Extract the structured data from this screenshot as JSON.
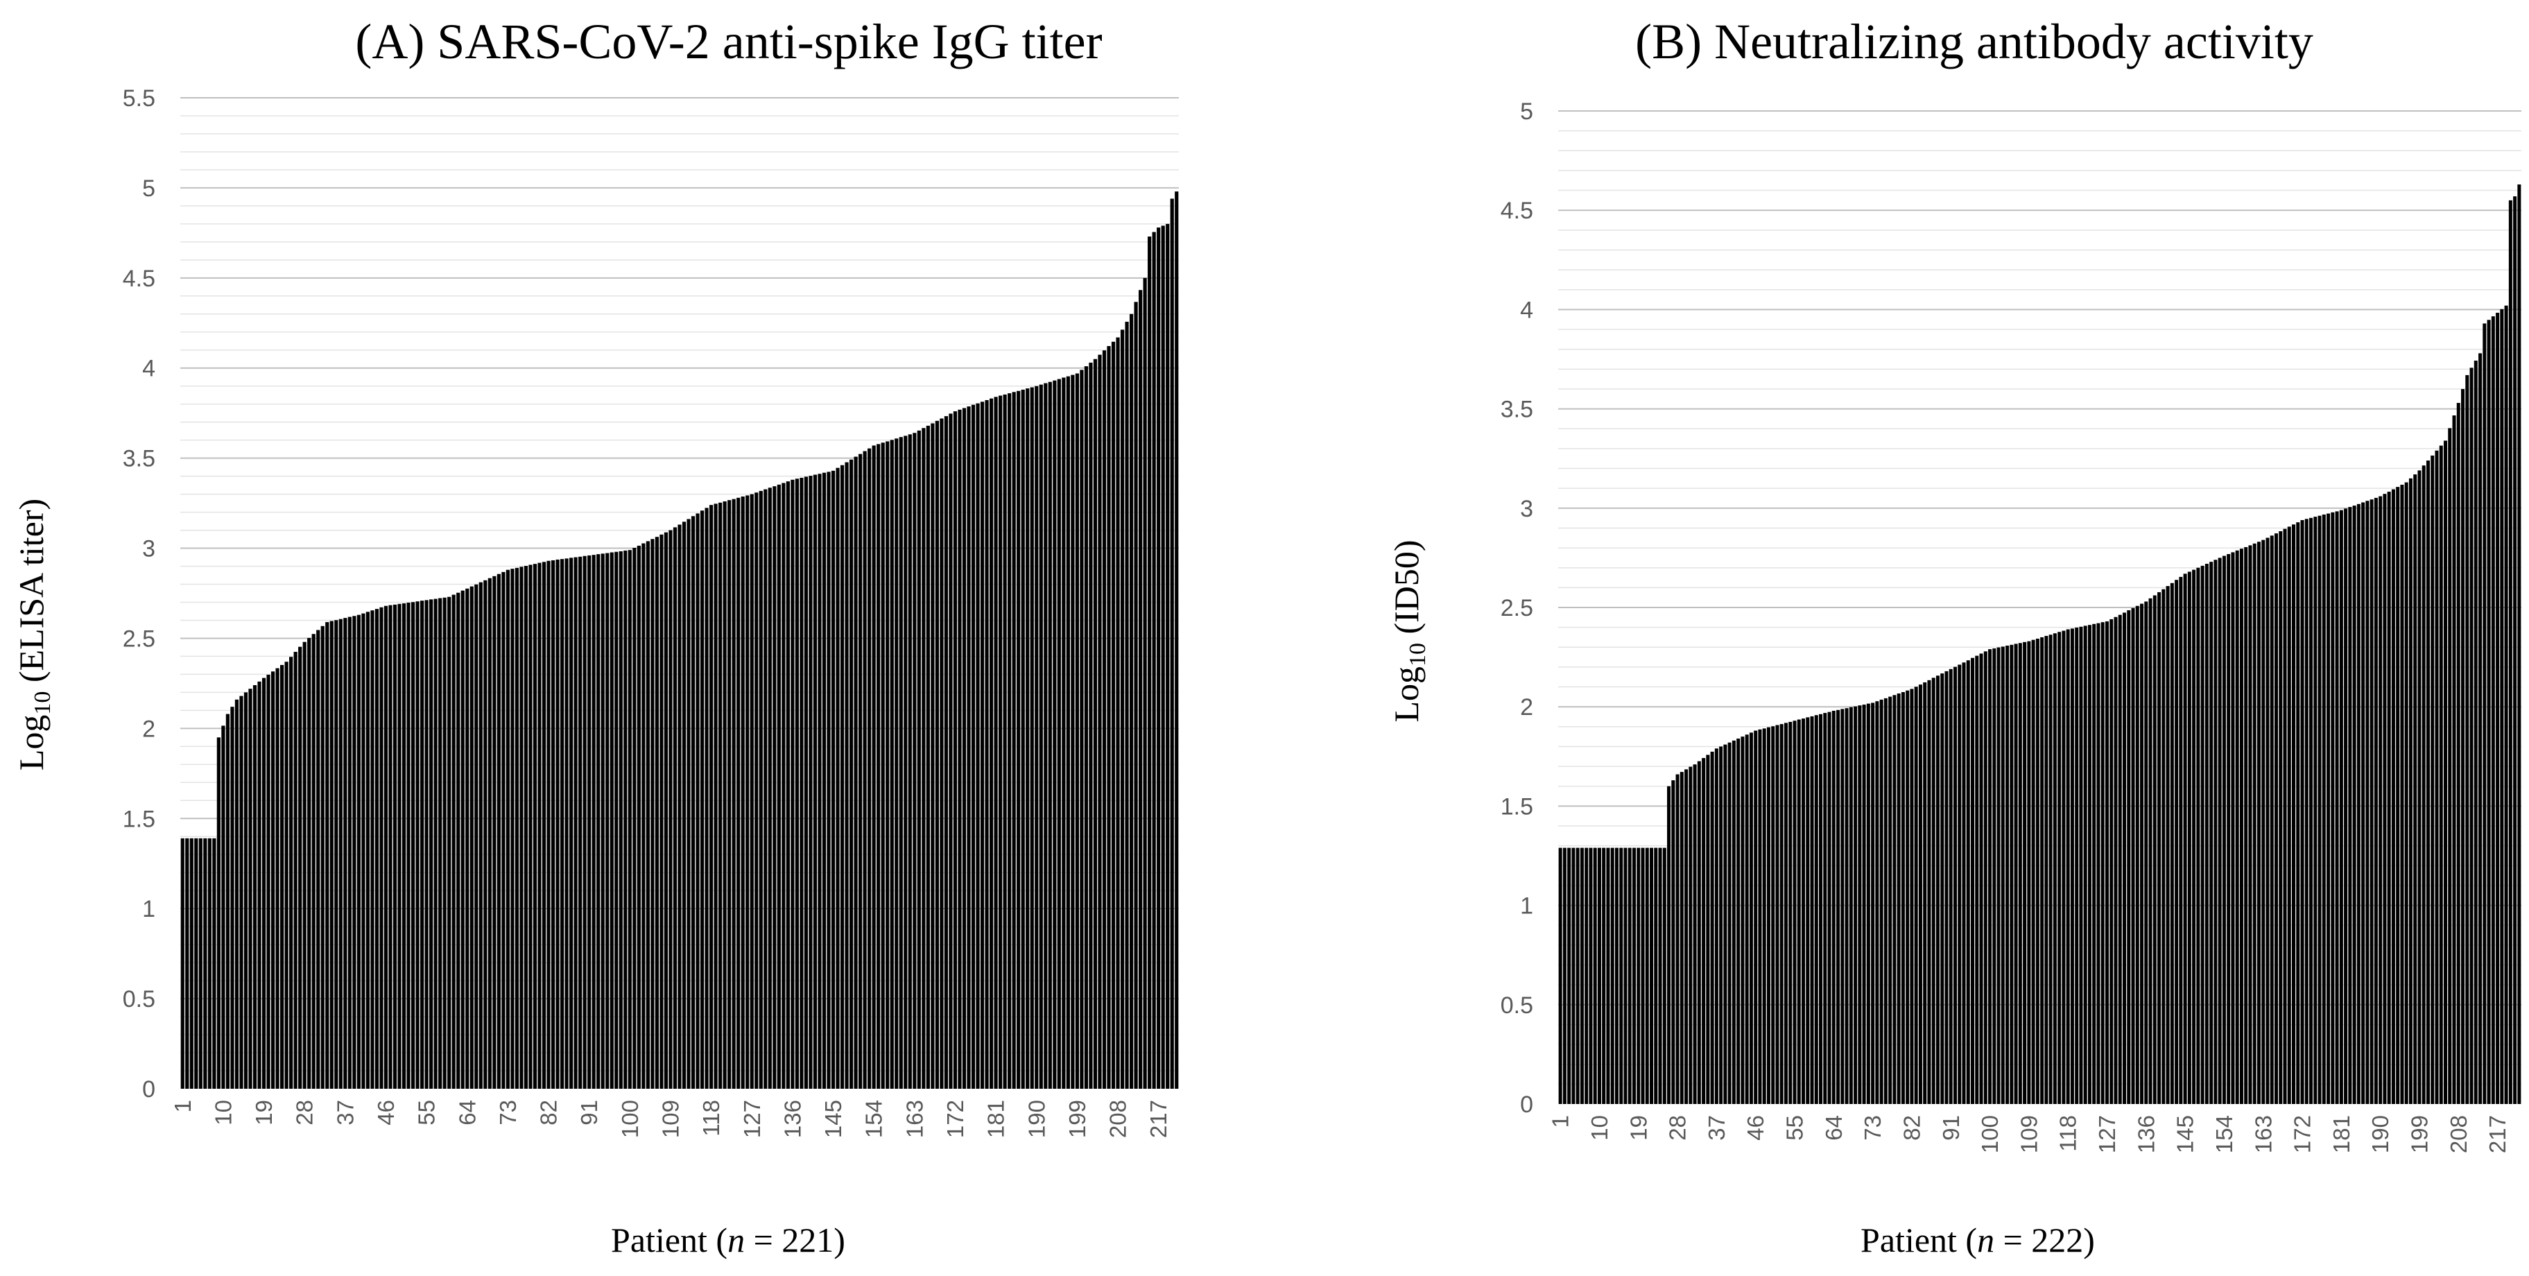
{
  "charts": [
    {
      "id": "A",
      "title": "(A) SARS-CoV-2  anti-spike IgG titer",
      "ylabel_main": "Log",
      "ylabel_sub": "10",
      "ylabel_rest": " (ELISA titer)",
      "xlabel_main": "Patient (",
      "xlabel_n": "n",
      "xlabel_rest": " = 221)",
      "yticks": [
        "0",
        "0.5",
        "1",
        "1.5",
        "2",
        "2.5",
        "3",
        "3.5",
        "4",
        "4.5",
        "5",
        "5.5"
      ],
      "xticks": [
        "1",
        "10",
        "19",
        "28",
        "37",
        "46",
        "55",
        "64",
        "73",
        "82",
        "91",
        "100",
        "109",
        "118",
        "127",
        "136",
        "145",
        "154",
        "163",
        "172",
        "181",
        "190",
        "199",
        "208",
        "217"
      ]
    },
    {
      "id": "B",
      "title": "(B) Neutralizing antibody activity",
      "ylabel_main": "Log",
      "ylabel_sub": "10",
      "ylabel_rest": " (ID50)",
      "xlabel_main": "Patient (",
      "xlabel_n": "n",
      "xlabel_rest": " = 222)",
      "yticks": [
        "0",
        "0.5",
        "1",
        "1.5",
        "2",
        "2.5",
        "3",
        "3.5",
        "4",
        "4.5",
        "5"
      ],
      "xticks": [
        "1",
        "10",
        "19",
        "28",
        "37",
        "46",
        "55",
        "64",
        "73",
        "82",
        "91",
        "100",
        "109",
        "118",
        "127",
        "136",
        "145",
        "154",
        "163",
        "172",
        "181",
        "190",
        "199",
        "208",
        "217"
      ]
    }
  ],
  "chart_data": [
    {
      "type": "bar",
      "title": "(A) SARS-CoV-2  anti-spike IgG titer",
      "xlabel": "Patient (n = 221)",
      "ylabel": "Log10 (ELISA titer)",
      "n": 221,
      "ylim": [
        0,
        5.5
      ],
      "ytick_step": 0.5,
      "minor_grid_step": 0.1,
      "grid": true,
      "bar_color": "#000000",
      "x_tick_interval": 9,
      "breakpoints": [
        [
          1,
          1.39
        ],
        [
          8,
          1.39
        ],
        [
          9,
          1.95
        ],
        [
          11,
          2.08
        ],
        [
          13,
          2.16
        ],
        [
          19,
          2.28
        ],
        [
          24,
          2.37
        ],
        [
          28,
          2.48
        ],
        [
          33,
          2.59
        ],
        [
          40,
          2.63
        ],
        [
          46,
          2.68
        ],
        [
          60,
          2.73
        ],
        [
          73,
          2.88
        ],
        [
          82,
          2.93
        ],
        [
          91,
          2.96
        ],
        [
          100,
          2.99
        ],
        [
          109,
          3.1
        ],
        [
          118,
          3.24
        ],
        [
          127,
          3.3
        ],
        [
          136,
          3.38
        ],
        [
          145,
          3.43
        ],
        [
          154,
          3.57
        ],
        [
          163,
          3.64
        ],
        [
          172,
          3.76
        ],
        [
          181,
          3.84
        ],
        [
          190,
          3.9
        ],
        [
          199,
          3.97
        ],
        [
          203,
          4.05
        ],
        [
          208,
          4.17
        ],
        [
          211,
          4.3
        ],
        [
          214,
          4.5
        ],
        [
          215,
          4.73
        ],
        [
          217,
          4.78
        ],
        [
          219,
          4.8
        ],
        [
          220,
          4.94
        ],
        [
          221,
          4.98
        ]
      ]
    },
    {
      "type": "bar",
      "title": "(B) Neutralizing antibody activity",
      "xlabel": "Patient (n = 222)",
      "ylabel": "Log10 (ID50)",
      "n": 222,
      "ylim": [
        0,
        5
      ],
      "ytick_step": 0.5,
      "minor_grid_step": 0.1,
      "grid": true,
      "bar_color": "#000000",
      "x_tick_interval": 9,
      "breakpoints": [
        [
          1,
          1.29
        ],
        [
          25,
          1.29
        ],
        [
          26,
          1.6
        ],
        [
          28,
          1.66
        ],
        [
          32,
          1.71
        ],
        [
          37,
          1.79
        ],
        [
          46,
          1.88
        ],
        [
          55,
          1.93
        ],
        [
          64,
          1.98
        ],
        [
          73,
          2.02
        ],
        [
          82,
          2.09
        ],
        [
          91,
          2.19
        ],
        [
          100,
          2.29
        ],
        [
          109,
          2.33
        ],
        [
          118,
          2.39
        ],
        [
          127,
          2.43
        ],
        [
          136,
          2.53
        ],
        [
          145,
          2.67
        ],
        [
          154,
          2.76
        ],
        [
          163,
          2.84
        ],
        [
          172,
          2.94
        ],
        [
          181,
          2.99
        ],
        [
          190,
          3.06
        ],
        [
          196,
          3.13
        ],
        [
          199,
          3.19
        ],
        [
          205,
          3.34
        ],
        [
          208,
          3.53
        ],
        [
          210,
          3.67
        ],
        [
          213,
          3.78
        ],
        [
          214,
          3.93
        ],
        [
          219,
          4.02
        ],
        [
          220,
          4.55
        ],
        [
          221,
          4.57
        ],
        [
          222,
          4.63
        ]
      ]
    }
  ]
}
